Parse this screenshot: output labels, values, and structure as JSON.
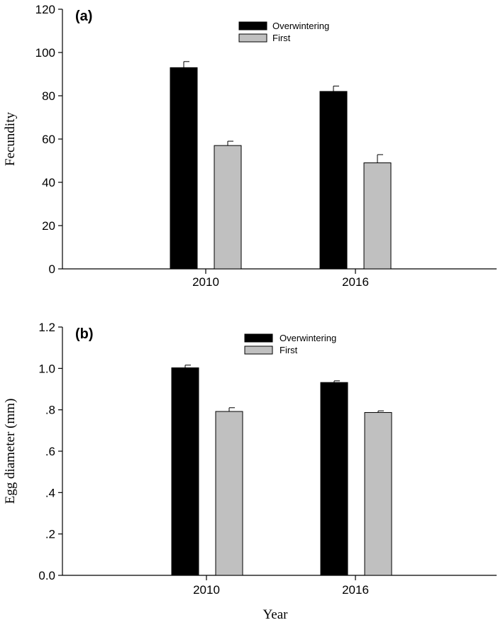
{
  "chart_data": [
    {
      "type": "bar",
      "panel_label": "(a)",
      "title": "",
      "categories": [
        "2010",
        "2016"
      ],
      "series": [
        {
          "name": "Overwintering",
          "color": "#000000",
          "values": [
            93,
            82
          ],
          "errors": [
            2.8,
            2.5
          ]
        },
        {
          "name": "First",
          "color": "#c0c0c0",
          "values": [
            57,
            49
          ],
          "errors": [
            2.0,
            3.8
          ]
        }
      ],
      "xlabel": "",
      "ylabel": "Fecundity",
      "ylim": [
        0,
        120
      ],
      "yticks": [
        {
          "value": 0,
          "label": "0"
        },
        {
          "value": 20,
          "label": "20"
        },
        {
          "value": 40,
          "label": "40"
        },
        {
          "value": 60,
          "label": "60"
        },
        {
          "value": 80,
          "label": "80"
        },
        {
          "value": 100,
          "label": "100"
        },
        {
          "value": 120,
          "label": "120"
        }
      ],
      "grid": false,
      "legend_position": "top-center"
    },
    {
      "type": "bar",
      "panel_label": "(b)",
      "title": "",
      "categories": [
        "2010",
        "2016"
      ],
      "series": [
        {
          "name": "Overwintering",
          "color": "#000000",
          "values": [
            1.003,
            0.932
          ],
          "errors": [
            0.013,
            0.008
          ]
        },
        {
          "name": "First",
          "color": "#c0c0c0",
          "values": [
            0.792,
            0.787
          ],
          "errors": [
            0.018,
            0.008
          ]
        }
      ],
      "xlabel": "Year",
      "ylabel": "Egg diameter (mm)",
      "ylim": [
        0,
        1.2
      ],
      "yticks": [
        {
          "value": 0,
          "label": "0.0"
        },
        {
          "value": 0.2,
          "label": ".2"
        },
        {
          "value": 0.4,
          "label": ".4"
        },
        {
          "value": 0.6,
          "label": ".6"
        },
        {
          "value": 0.8,
          "label": ".8"
        },
        {
          "value": 1.0,
          "label": "1.0"
        },
        {
          "value": 1.2,
          "label": "1.2"
        }
      ],
      "grid": false,
      "legend_position": "top-center"
    }
  ]
}
